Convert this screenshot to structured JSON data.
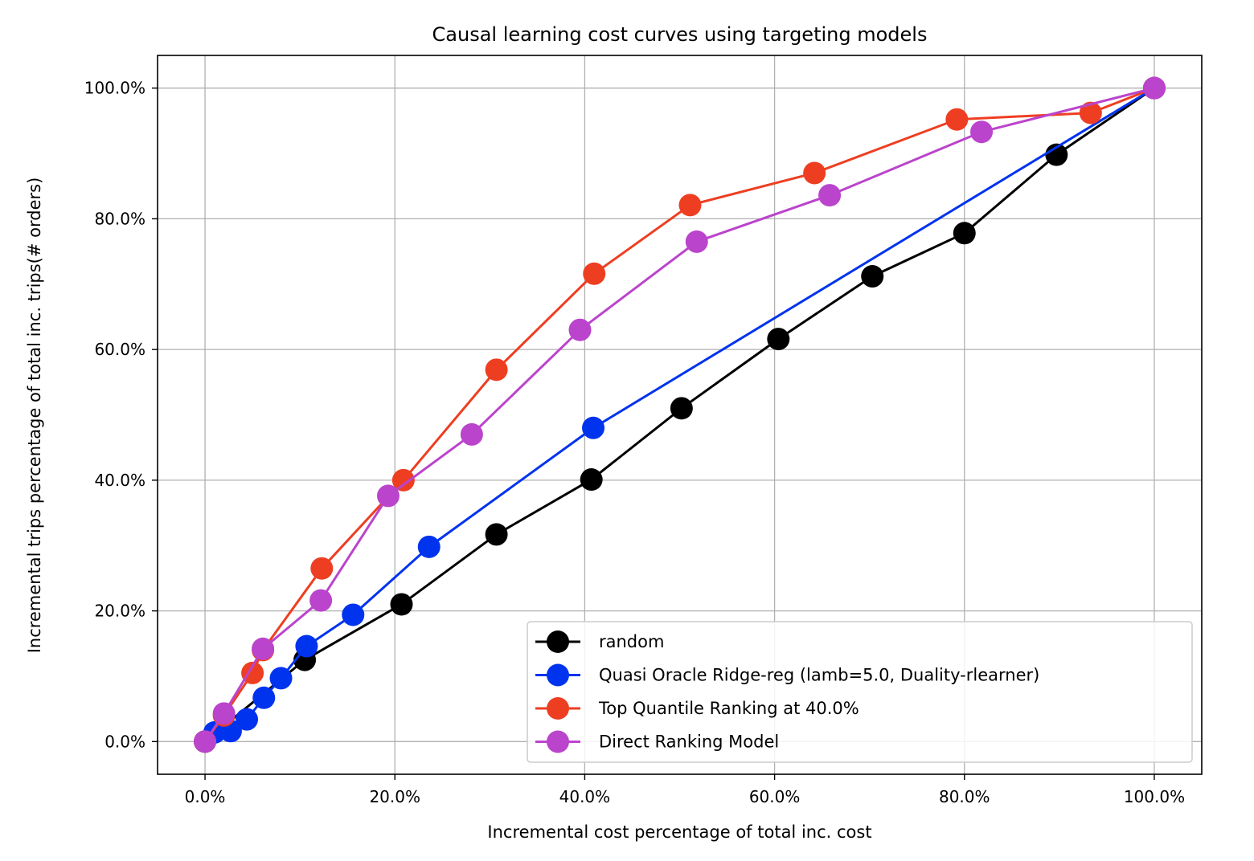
{
  "chart_data": {
    "type": "line",
    "title": "Causal learning cost curves using targeting models",
    "xlabel": "Incremental cost percentage of total inc. cost",
    "ylabel": "Incremental trips percentage of total inc. trips(# orders)",
    "xlim": [
      -5,
      105
    ],
    "ylim": [
      -5,
      105
    ],
    "x_ticks": [
      0,
      20,
      40,
      60,
      80,
      100
    ],
    "y_ticks": [
      0,
      20,
      40,
      60,
      80,
      100
    ],
    "x_tick_labels": [
      "0.0%",
      "20.0%",
      "40.0%",
      "60.0%",
      "80.0%",
      "100.0%"
    ],
    "y_tick_labels": [
      "0.0%",
      "20.0%",
      "40.0%",
      "60.0%",
      "80.0%",
      "100.0%"
    ],
    "grid": true,
    "legend_position": "bottom-right",
    "series": [
      {
        "name": "random",
        "color": "#000000",
        "x": [
          0,
          10.5,
          20.7,
          30.7,
          40.7,
          50.2,
          60.4,
          70.3,
          80.0,
          89.7,
          100
        ],
        "y": [
          0,
          12.5,
          21.0,
          31.7,
          40.1,
          51.0,
          61.6,
          71.2,
          77.8,
          89.8,
          100
        ]
      },
      {
        "name": "Quasi Oracle Ridge-reg (lamb=5.0, Duality-rlearner)",
        "color": "#0033ee",
        "x": [
          0,
          1.0,
          2.7,
          4.4,
          6.2,
          8.0,
          10.7,
          15.6,
          23.6,
          40.9,
          100
        ],
        "y": [
          0,
          1.4,
          1.6,
          3.4,
          6.7,
          9.7,
          14.6,
          19.4,
          29.8,
          48.0,
          100
        ]
      },
      {
        "name": "Top Quantile Ranking at 40.0%",
        "color": "#ee3e22",
        "x": [
          0,
          2.0,
          5.0,
          6.1,
          12.3,
          20.9,
          30.7,
          41.0,
          51.1,
          64.2,
          79.2,
          93.3,
          100
        ],
        "y": [
          0,
          4.0,
          10.5,
          14.0,
          26.5,
          40.0,
          56.9,
          71.6,
          82.1,
          87.0,
          95.2,
          96.2,
          100
        ]
      },
      {
        "name": "Direct Ranking Model",
        "color": "#bb44cc",
        "x": [
          0,
          2.0,
          6.1,
          12.2,
          19.3,
          28.1,
          39.5,
          51.8,
          65.8,
          81.8,
          100
        ],
        "y": [
          0,
          4.3,
          14.2,
          21.6,
          37.6,
          47.0,
          63.0,
          76.5,
          83.6,
          93.3,
          100
        ]
      }
    ]
  }
}
